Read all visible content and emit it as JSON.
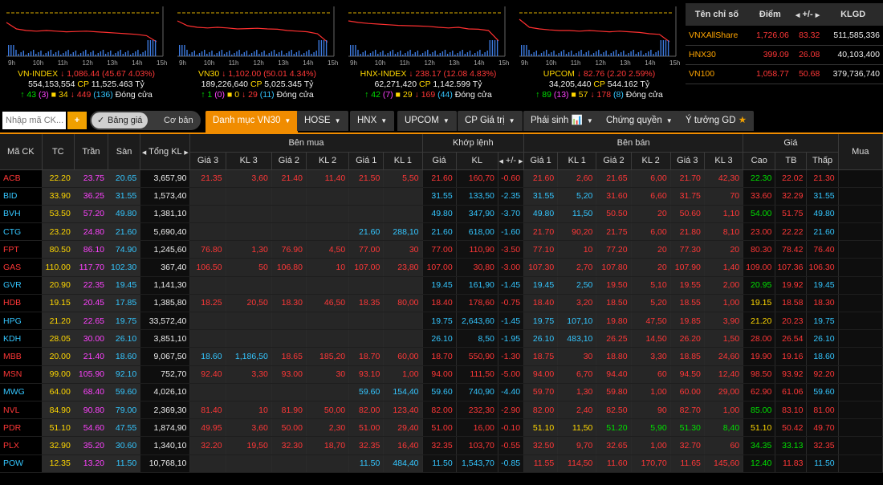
{
  "indices": [
    {
      "name": "VN-INDEX",
      "value": "1,086.44",
      "change": "(45.67 4.03%)",
      "volume": "554,153,554",
      "cp_value": "11,525.463",
      "cp_label": "CP",
      "unit": "Tỷ",
      "up": "43",
      "up_sub": "(3)",
      "ref": "34",
      "down": "449",
      "down_sub": "(136)",
      "status": "Đóng cửa",
      "times": [
        "9h",
        "10h",
        "11h",
        "12h",
        "13h",
        "14h",
        "15h"
      ]
    },
    {
      "name": "VN30",
      "value": "1,102.00",
      "change": "(50.01 4.34%)",
      "volume": "189,226,640",
      "cp_value": "5,025.345",
      "cp_label": "CP",
      "unit": "Tỷ",
      "up": "1",
      "up_sub": "(0)",
      "ref": "0",
      "down": "29",
      "down_sub": "(11)",
      "status": "Đóng cửa",
      "times": [
        "9h",
        "10h",
        "11h",
        "12h",
        "13h",
        "14h",
        "15h"
      ]
    },
    {
      "name": "HNX-INDEX",
      "value": "238.17",
      "change": "(12.08 4.83%)",
      "volume": "62,271,420",
      "cp_value": "1,142.599",
      "cp_label": "CP",
      "unit": "Tỷ",
      "up": "42",
      "up_sub": "(7)",
      "ref": "29",
      "down": "169",
      "down_sub": "(44)",
      "status": "Đóng cửa",
      "times": [
        "9h",
        "10h",
        "11h",
        "12h",
        "13h",
        "14h",
        "15h"
      ]
    },
    {
      "name": "UPCOM",
      "value": "82.76",
      "change": "(2.20 2.59%)",
      "volume": "34,205,440",
      "cp_value": "544.162",
      "cp_label": "CP",
      "unit": "Tỷ",
      "up": "89",
      "up_sub": "(13)",
      "ref": "57",
      "down": "178",
      "down_sub": "(8)",
      "status": "Đóng cửa",
      "times": [
        "9h",
        "10h",
        "11h",
        "12h",
        "13h",
        "14h",
        "15h"
      ]
    }
  ],
  "summary": {
    "headers": [
      "Tên chỉ số",
      "Điểm",
      "+/-",
      "KLGD"
    ],
    "rows": [
      {
        "name": "VNXAllShare",
        "point": "1,726.06",
        "change": "83.32",
        "volume": "511,585,336"
      },
      {
        "name": "HNX30",
        "point": "399.09",
        "change": "26.08",
        "volume": "40,103,400"
      },
      {
        "name": "VN100",
        "point": "1,058.77",
        "change": "50.68",
        "volume": "379,736,740"
      }
    ]
  },
  "toolbar": {
    "search_placeholder": "Nhập mã CK...",
    "add_label": "+",
    "toggle_on": "Bảng giá",
    "toggle_off": "Cơ bản",
    "tabs": [
      "Danh mục VN30",
      "HOSE",
      "HNX",
      "UPCOM",
      "CP Giá trị",
      "Phái sinh",
      "Chứng quyền",
      "Ý tưởng GD"
    ]
  },
  "colors": {
    "up": "#00e000",
    "down": "#ff3737",
    "ref": "#ffd700",
    "ceil": "#ff42ff",
    "floor": "#34c6ff",
    "accent": "#f08c00"
  },
  "board": {
    "group_headers": [
      "Bên mua",
      "Khớp lệnh",
      "Bên bán",
      "Giá"
    ],
    "headers": [
      "Mã CK",
      "TC",
      "Trần",
      "Sàn",
      "Tổng KL",
      "Giá 3",
      "KL 3",
      "Giá 2",
      "KL 2",
      "Giá 1",
      "KL 1",
      "Giá",
      "KL",
      "+/-",
      "Giá 1",
      "KL 1",
      "Giá 2",
      "KL 2",
      "Giá 3",
      "KL 3",
      "Cao",
      "TB",
      "Thấp",
      "Mua"
    ],
    "rows": [
      {
        "sym": "ACB",
        "tc": "22.20",
        "tran": "23.75",
        "san": "20.65",
        "tkl": "3,657,90",
        "b3": "21.35",
        "bk3": "3,60",
        "b2": "21.40",
        "bk2": "11,40",
        "b1": "21.50",
        "bk1": "5,50",
        "p": "21.60",
        "v": "160,70",
        "c": "-0.60",
        "s1": "21.60",
        "sk1": "2,60",
        "s2": "21.65",
        "sk2": "6,00",
        "s3": "21.70",
        "sk3": "42,30",
        "hi": "22.30",
        "avg": "22.02",
        "lo": "21.30",
        "cls": {
          "sym": "down",
          "b3": "down",
          "b2": "down",
          "b1": "down",
          "p": "down",
          "s1": "down",
          "s2": "down",
          "s3": "down",
          "hi": "up",
          "avg": "down",
          "lo": "down"
        }
      },
      {
        "sym": "BID",
        "tc": "33.90",
        "tran": "36.25",
        "san": "31.55",
        "tkl": "1,573,40",
        "b3": "",
        "bk3": "",
        "b2": "",
        "bk2": "",
        "b1": "",
        "bk1": "",
        "p": "31.55",
        "v": "133,50",
        "c": "-2.35",
        "s1": "31.55",
        "sk1": "5,20",
        "s2": "31.60",
        "sk2": "6,60",
        "s3": "31.75",
        "sk3": "70",
        "hi": "33.60",
        "avg": "32.29",
        "lo": "31.55",
        "cls": {
          "sym": "floor",
          "p": "floor",
          "s1": "floor",
          "s2": "down",
          "s3": "down",
          "hi": "down",
          "avg": "down",
          "lo": "floor"
        }
      },
      {
        "sym": "BVH",
        "tc": "53.50",
        "tran": "57.20",
        "san": "49.80",
        "tkl": "1,381,10",
        "b3": "",
        "bk3": "",
        "b2": "",
        "bk2": "",
        "b1": "",
        "bk1": "",
        "p": "49.80",
        "v": "347,90",
        "c": "-3.70",
        "s1": "49.80",
        "sk1": "11,50",
        "s2": "50.50",
        "sk2": "20",
        "s3": "50.60",
        "sk3": "1,10",
        "hi": "54.00",
        "avg": "51.75",
        "lo": "49.80",
        "cls": {
          "sym": "floor",
          "p": "floor",
          "s1": "floor",
          "s2": "down",
          "s3": "down",
          "hi": "up",
          "avg": "down",
          "lo": "floor"
        }
      },
      {
        "sym": "CTG",
        "tc": "23.20",
        "tran": "24.80",
        "san": "21.60",
        "tkl": "5,690,40",
        "b3": "",
        "bk3": "",
        "b2": "",
        "bk2": "",
        "b1": "21.60",
        "bk1": "288,10",
        "p": "21.60",
        "v": "618,00",
        "c": "-1.60",
        "s1": "21.70",
        "sk1": "90,20",
        "s2": "21.75",
        "sk2": "6,00",
        "s3": "21.80",
        "sk3": "8,10",
        "hi": "23.00",
        "avg": "22.22",
        "lo": "21.60",
        "cls": {
          "sym": "floor",
          "b1": "floor",
          "p": "floor",
          "s1": "down",
          "s2": "down",
          "s3": "down",
          "hi": "down",
          "avg": "down",
          "lo": "floor"
        }
      },
      {
        "sym": "FPT",
        "tc": "80.50",
        "tran": "86.10",
        "san": "74.90",
        "tkl": "1,245,60",
        "b3": "76.80",
        "bk3": "1,30",
        "b2": "76.90",
        "bk2": "4,50",
        "b1": "77.00",
        "bk1": "30",
        "p": "77.00",
        "v": "110,90",
        "c": "-3.50",
        "s1": "77.10",
        "sk1": "10",
        "s2": "77.20",
        "sk2": "20",
        "s3": "77.30",
        "sk3": "20",
        "hi": "80.30",
        "avg": "78.42",
        "lo": "76.40",
        "cls": {
          "sym": "down",
          "b3": "down",
          "b2": "down",
          "b1": "down",
          "p": "down",
          "s1": "down",
          "s2": "down",
          "s3": "down",
          "hi": "down",
          "avg": "down",
          "lo": "down"
        }
      },
      {
        "sym": "GAS",
        "tc": "110.00",
        "tran": "117.70",
        "san": "102.30",
        "tkl": "367,40",
        "b3": "106.50",
        "bk3": "50",
        "b2": "106.80",
        "bk2": "10",
        "b1": "107.00",
        "bk1": "23,80",
        "p": "107.00",
        "v": "30,80",
        "c": "-3.00",
        "s1": "107.30",
        "sk1": "2,70",
        "s2": "107.80",
        "sk2": "20",
        "s3": "107.90",
        "sk3": "1,40",
        "hi": "109.00",
        "avg": "107.36",
        "lo": "106.30",
        "cls": {
          "sym": "down",
          "b3": "down",
          "b2": "down",
          "b1": "down",
          "p": "down",
          "s1": "down",
          "s2": "down",
          "s3": "down",
          "hi": "down",
          "avg": "down",
          "lo": "down"
        }
      },
      {
        "sym": "GVR",
        "tc": "20.90",
        "tran": "22.35",
        "san": "19.45",
        "tkl": "1,141,30",
        "b3": "",
        "bk3": "",
        "b2": "",
        "bk2": "",
        "b1": "",
        "bk1": "",
        "p": "19.45",
        "v": "161,90",
        "c": "-1.45",
        "s1": "19.45",
        "sk1": "2,50",
        "s2": "19.50",
        "sk2": "5,10",
        "s3": "19.55",
        "sk3": "2,00",
        "hi": "20.95",
        "avg": "19.92",
        "lo": "19.45",
        "cls": {
          "sym": "floor",
          "p": "floor",
          "s1": "floor",
          "s2": "down",
          "s3": "down",
          "hi": "up",
          "avg": "down",
          "lo": "floor"
        }
      },
      {
        "sym": "HDB",
        "tc": "19.15",
        "tran": "20.45",
        "san": "17.85",
        "tkl": "1,385,80",
        "b3": "18.25",
        "bk3": "20,50",
        "b2": "18.30",
        "bk2": "46,50",
        "b1": "18.35",
        "bk1": "80,00",
        "p": "18.40",
        "v": "178,60",
        "c": "-0.75",
        "s1": "18.40",
        "sk1": "3,20",
        "s2": "18.50",
        "sk2": "5,20",
        "s3": "18.55",
        "sk3": "1,00",
        "hi": "19.15",
        "avg": "18.58",
        "lo": "18.30",
        "cls": {
          "sym": "down",
          "b3": "down",
          "b2": "down",
          "b1": "down",
          "p": "down",
          "s1": "down",
          "s2": "down",
          "s3": "down",
          "hi": "ref",
          "avg": "down",
          "lo": "down"
        }
      },
      {
        "sym": "HPG",
        "tc": "21.20",
        "tran": "22.65",
        "san": "19.75",
        "tkl": "33,572,40",
        "b3": "",
        "bk3": "",
        "b2": "",
        "bk2": "",
        "b1": "",
        "bk1": "",
        "p": "19.75",
        "v": "2,643,60",
        "c": "-1.45",
        "s1": "19.75",
        "sk1": "107,10",
        "s2": "19.80",
        "sk2": "47,50",
        "s3": "19.85",
        "sk3": "3,90",
        "hi": "21.20",
        "avg": "20.23",
        "lo": "19.75",
        "cls": {
          "sym": "floor",
          "p": "floor",
          "s1": "floor",
          "s2": "down",
          "s3": "down",
          "hi": "ref",
          "avg": "down",
          "lo": "floor"
        }
      },
      {
        "sym": "KDH",
        "tc": "28.05",
        "tran": "30.00",
        "san": "26.10",
        "tkl": "3,851,10",
        "b3": "",
        "bk3": "",
        "b2": "",
        "bk2": "",
        "b1": "",
        "bk1": "",
        "p": "26.10",
        "v": "8,50",
        "c": "-1.95",
        "s1": "26.10",
        "sk1": "483,10",
        "s2": "26.25",
        "sk2": "14,50",
        "s3": "26.20",
        "sk3": "1,50",
        "hi": "28.00",
        "avg": "26.54",
        "lo": "26.10",
        "cls": {
          "sym": "floor",
          "p": "floor",
          "s1": "floor",
          "s2": "down",
          "s3": "down",
          "hi": "down",
          "avg": "down",
          "lo": "floor"
        }
      },
      {
        "sym": "MBB",
        "tc": "20.00",
        "tran": "21.40",
        "san": "18.60",
        "tkl": "9,067,50",
        "b3": "18.60",
        "bk3": "1,186,50",
        "b2": "18.65",
        "bk2": "185,20",
        "b1": "18.70",
        "bk1": "60,00",
        "p": "18.70",
        "v": "550,90",
        "c": "-1.30",
        "s1": "18.75",
        "sk1": "30",
        "s2": "18.80",
        "sk2": "3,30",
        "s3": "18.85",
        "sk3": "24,60",
        "hi": "19.90",
        "avg": "19.16",
        "lo": "18.60",
        "cls": {
          "sym": "down",
          "b3": "floor",
          "b2": "down",
          "b1": "down",
          "p": "down",
          "s1": "down",
          "s2": "down",
          "s3": "down",
          "hi": "down",
          "avg": "down",
          "lo": "floor"
        }
      },
      {
        "sym": "MSN",
        "tc": "99.00",
        "tran": "105.90",
        "san": "92.10",
        "tkl": "752,70",
        "b3": "92.40",
        "bk3": "3,30",
        "b2": "93.00",
        "bk2": "30",
        "b1": "93.10",
        "bk1": "1,00",
        "p": "94.00",
        "v": "111,50",
        "c": "-5.00",
        "s1": "94.00",
        "sk1": "6,70",
        "s2": "94.40",
        "sk2": "60",
        "s3": "94.50",
        "sk3": "12,40",
        "hi": "98.50",
        "avg": "93.92",
        "lo": "92.20",
        "cls": {
          "sym": "down",
          "b3": "down",
          "b2": "down",
          "b1": "down",
          "p": "down",
          "s1": "down",
          "s2": "down",
          "s3": "down",
          "hi": "down",
          "avg": "down",
          "lo": "down"
        }
      },
      {
        "sym": "MWG",
        "tc": "64.00",
        "tran": "68.40",
        "san": "59.60",
        "tkl": "4,026,10",
        "b3": "",
        "bk3": "",
        "b2": "",
        "bk2": "",
        "b1": "59.60",
        "bk1": "154,40",
        "p": "59.60",
        "v": "740,90",
        "c": "-4.40",
        "s1": "59.70",
        "sk1": "1,30",
        "s2": "59.80",
        "sk2": "1,00",
        "s3": "60.00",
        "sk3": "29,00",
        "hi": "62.90",
        "avg": "61.06",
        "lo": "59.60",
        "cls": {
          "sym": "floor",
          "b1": "floor",
          "p": "floor",
          "s1": "down",
          "s2": "down",
          "s3": "down",
          "hi": "down",
          "avg": "down",
          "lo": "floor"
        }
      },
      {
        "sym": "NVL",
        "tc": "84.90",
        "tran": "90.80",
        "san": "79.00",
        "tkl": "2,369,30",
        "b3": "81.40",
        "bk3": "10",
        "b2": "81.90",
        "bk2": "50,00",
        "b1": "82.00",
        "bk1": "123,40",
        "p": "82.00",
        "v": "232,30",
        "c": "-2.90",
        "s1": "82.00",
        "sk1": "2,40",
        "s2": "82.50",
        "sk2": "90",
        "s3": "82.70",
        "sk3": "1,00",
        "hi": "85.00",
        "avg": "83.10",
        "lo": "81.00",
        "cls": {
          "sym": "down",
          "b3": "down",
          "b2": "down",
          "b1": "down",
          "p": "down",
          "s1": "down",
          "s2": "down",
          "s3": "down",
          "hi": "up",
          "avg": "down",
          "lo": "down"
        }
      },
      {
        "sym": "PDR",
        "tc": "51.10",
        "tran": "54.60",
        "san": "47.55",
        "tkl": "1,874,90",
        "b3": "49.95",
        "bk3": "3,60",
        "b2": "50.00",
        "bk2": "2,30",
        "b1": "51.00",
        "bk1": "29,40",
        "p": "51.00",
        "v": "16,00",
        "c": "-0.10",
        "s1": "51.10",
        "sk1": "11,50",
        "s2": "51.20",
        "sk2": "5,90",
        "s3": "51.30",
        "sk3": "8,40",
        "hi": "51.10",
        "avg": "50.42",
        "lo": "49.70",
        "cls": {
          "sym": "down",
          "b3": "down",
          "b2": "down",
          "b1": "down",
          "p": "down",
          "s1": "ref",
          "sk1": "ref",
          "s2": "up",
          "sk2": "up",
          "s3": "up",
          "sk3": "up",
          "hi": "ref",
          "avg": "down",
          "lo": "down"
        }
      },
      {
        "sym": "PLX",
        "tc": "32.90",
        "tran": "35.20",
        "san": "30.60",
        "tkl": "1,340,10",
        "b3": "32.20",
        "bk3": "19,50",
        "b2": "32.30",
        "bk2": "18,70",
        "b1": "32.35",
        "bk1": "16,40",
        "p": "32.35",
        "v": "103,70",
        "c": "-0.55",
        "s1": "32.50",
        "sk1": "9,70",
        "s2": "32.65",
        "sk2": "1,00",
        "s3": "32.70",
        "sk3": "60",
        "hi": "34.35",
        "avg": "33.13",
        "lo": "32.35",
        "cls": {
          "sym": "down",
          "b3": "down",
          "b2": "down",
          "b1": "down",
          "p": "down",
          "s1": "down",
          "s2": "down",
          "s3": "down",
          "hi": "up",
          "avg": "up",
          "lo": "down"
        }
      },
      {
        "sym": "POW",
        "tc": "12.35",
        "tran": "13.20",
        "san": "11.50",
        "tkl": "10,768,10",
        "b3": "",
        "bk3": "",
        "b2": "",
        "bk2": "",
        "b1": "11.50",
        "bk1": "484,40",
        "p": "11.50",
        "v": "1,543,70",
        "c": "-0.85",
        "s1": "11.55",
        "sk1": "114,50",
        "s2": "11.60",
        "sk2": "170,70",
        "s3": "11.65",
        "sk3": "145,60",
        "hi": "12.40",
        "avg": "11.83",
        "lo": "11.50",
        "cls": {
          "sym": "floor",
          "b1": "floor",
          "p": "floor",
          "s1": "down",
          "s2": "down",
          "s3": "down",
          "hi": "up",
          "avg": "down",
          "lo": "floor"
        }
      }
    ]
  }
}
